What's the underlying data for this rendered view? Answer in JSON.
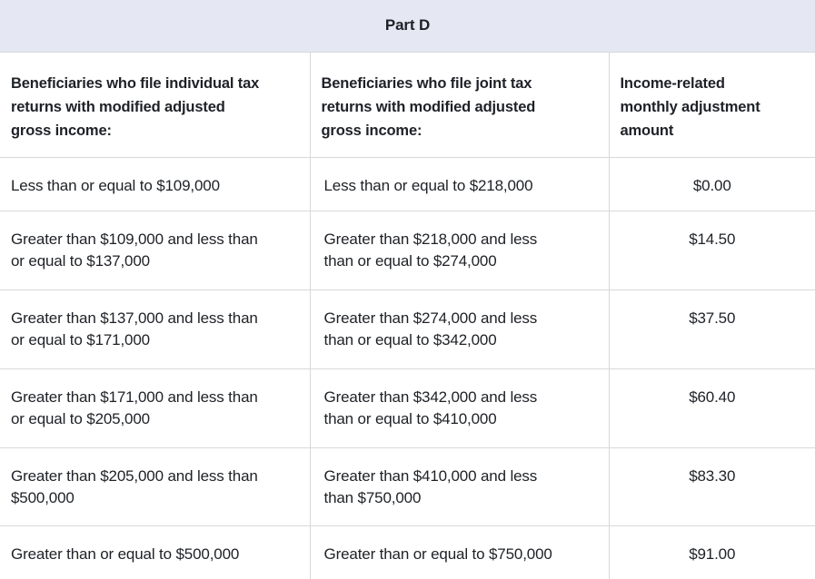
{
  "table": {
    "title": "Part D",
    "columns": [
      {
        "label": "Beneficiaries who file individual tax\nreturns with modified adjusted\ngross income:"
      },
      {
        "label": "Beneficiaries who file joint tax\nreturns with modified adjusted\ngross income:"
      },
      {
        "label": "Income-related\nmonthly adjustment\namount"
      }
    ],
    "rows": [
      {
        "individual": "Less than or equal to $109,000",
        "joint": "Less than or equal to $218,000",
        "amount": "$0.00"
      },
      {
        "individual": "Greater than $109,000 and less than\nor equal to $137,000",
        "joint": "Greater than $218,000 and less\nthan or equal to $274,000",
        "amount": "$14.50"
      },
      {
        "individual": "Greater than $137,000 and less than\nor equal to $171,000",
        "joint": "Greater than $274,000 and less\nthan or equal to $342,000",
        "amount": "$37.50"
      },
      {
        "individual": "Greater than $171,000 and less than\nor equal to $205,000",
        "joint": "Greater than $342,000 and less\nthan or equal to $410,000",
        "amount": "$60.40"
      },
      {
        "individual": "Greater than $205,000 and less than\n$500,000",
        "joint": "Greater than $410,000 and less\nthan $750,000",
        "amount": "$83.30"
      },
      {
        "individual": "Greater than or equal to $500,000",
        "joint": "Greater than or equal to $750,000",
        "amount": "$91.00"
      }
    ]
  },
  "colors": {
    "caption_background": "#e5e7f2",
    "border": "#d7d9da",
    "text": "#1e2126",
    "row_background": "#ffffff"
  }
}
